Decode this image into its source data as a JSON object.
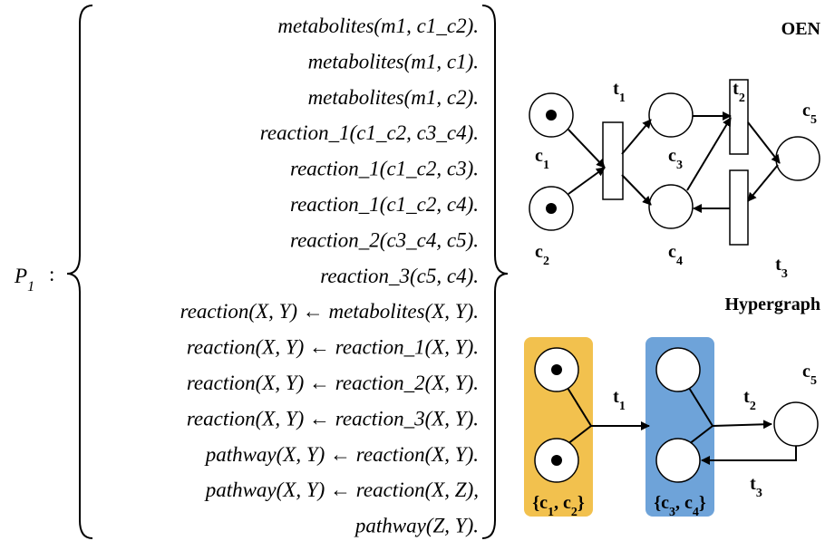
{
  "program": {
    "name": [
      {
        "t": "P"
      },
      {
        "sub": "1"
      }
    ],
    "separator": ":",
    "lines": [
      "metabolites(m1, c1_c2).",
      "metabolites(m1, c1).",
      "metabolites(m1, c2).",
      "reaction_1(c1_c2, c3_c4).",
      "reaction_1(c1_c2, c3).",
      "reaction_1(c1_c2, c4).",
      "reaction_2(c3_c4, c5).",
      "reaction_3(c5, c4).",
      "reaction(X, Y) ← metabolites(X, Y).",
      "reaction(X, Y) ← reaction_1(X, Y).",
      "reaction(X, Y) ← reaction_2(X, Y).",
      "reaction(X, Y) ← reaction_3(X, Y).",
      "pathway(X, Y) ← reaction(X, Y).",
      "pathway(X, Y) ← reaction(X, Z),",
      "pathway(Z, Y)."
    ]
  },
  "oen": {
    "title": "OEN",
    "places": [
      [
        {
          "t": "c"
        },
        {
          "sub": "1"
        }
      ],
      [
        {
          "t": "c"
        },
        {
          "sub": "2"
        }
      ],
      [
        {
          "t": "c"
        },
        {
          "sub": "3"
        }
      ],
      [
        {
          "t": "c"
        },
        {
          "sub": "4"
        }
      ],
      [
        {
          "t": "c"
        },
        {
          "sub": "5"
        }
      ]
    ],
    "transitions": [
      [
        {
          "t": "t"
        },
        {
          "sub": "1"
        }
      ],
      [
        {
          "t": "t"
        },
        {
          "sub": "2"
        }
      ],
      [
        {
          "t": "t"
        },
        {
          "sub": "3"
        }
      ]
    ]
  },
  "hypergraph": {
    "title": "Hypergraph",
    "place": [
      {
        "t": "c"
      },
      {
        "sub": "5"
      }
    ],
    "transitions": [
      [
        {
          "t": "t"
        },
        {
          "sub": "1"
        }
      ],
      [
        {
          "t": "t"
        },
        {
          "sub": "2"
        }
      ],
      [
        {
          "t": "t"
        },
        {
          "sub": "3"
        }
      ]
    ],
    "sets": [
      [
        {
          "t": "{c"
        },
        {
          "sub": "1"
        },
        {
          "t": ", c"
        },
        {
          "sub": "2"
        },
        {
          "t": "}"
        }
      ],
      [
        {
          "t": "{c"
        },
        {
          "sub": "3"
        },
        {
          "t": ", c"
        },
        {
          "sub": "4"
        },
        {
          "t": "}"
        }
      ]
    ]
  }
}
